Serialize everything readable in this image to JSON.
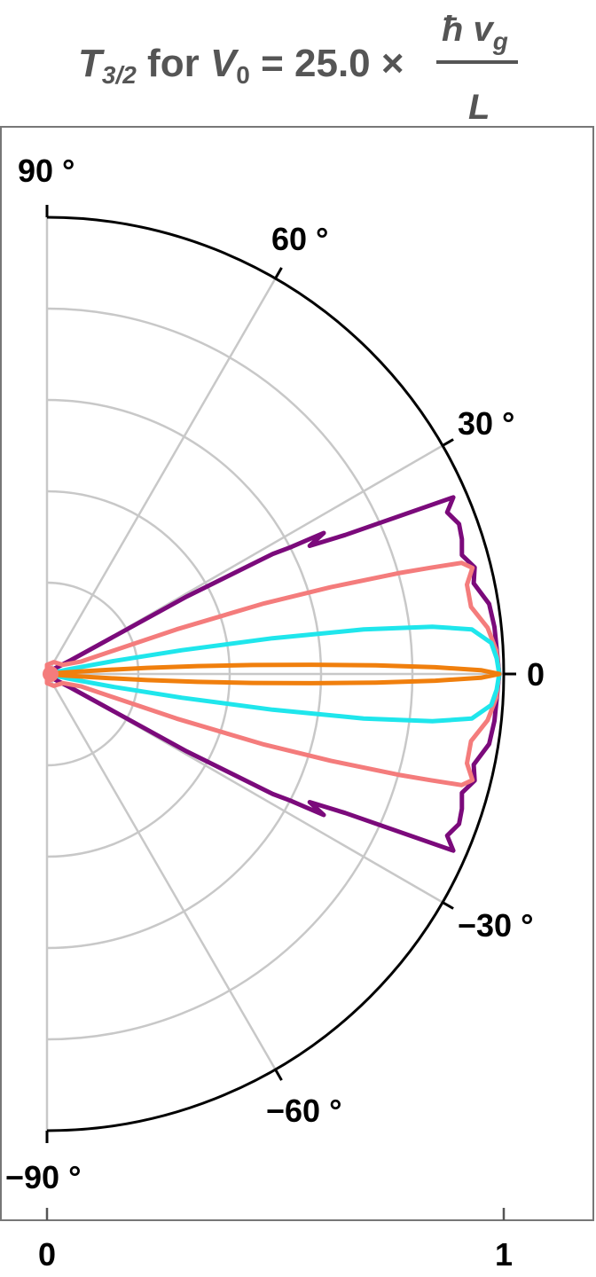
{
  "chart_data": {
    "type": "line",
    "coordinate_system": "polar",
    "title": {
      "T": "T",
      "T_sub": "3/2",
      "mid": " for ",
      "V": "V",
      "V_sub": "0",
      "eq": " = 25.0 ×",
      "num_h": "ħ",
      "num_v": " v",
      "num_sub": "g",
      "den": "L"
    },
    "angle_unit": "degrees",
    "angle_range": [
      -90,
      90
    ],
    "radius_range": [
      0,
      1
    ],
    "angle_ticks": [
      {
        "value": 90,
        "label": "90 °"
      },
      {
        "value": 60,
        "label": "60 °"
      },
      {
        "value": 30,
        "label": "30 °"
      },
      {
        "value": 0,
        "label": "0"
      },
      {
        "value": -30,
        "label": "−30 °"
      },
      {
        "value": -60,
        "label": "−60 °"
      },
      {
        "value": -90,
        "label": "−90 °"
      }
    ],
    "radial_ticks": [
      {
        "value": 0,
        "label": "0"
      },
      {
        "value": 1,
        "label": "1"
      }
    ],
    "radial_gridlines": [
      0.2,
      0.4,
      0.6,
      0.8
    ],
    "angular_gridlines": [
      -60,
      -30,
      30,
      60
    ],
    "grid": true,
    "legend": "none",
    "series": [
      {
        "color": "#7b0a7b",
        "points": [
          [
            0,
            0.99
          ],
          [
            6,
            0.985
          ],
          [
            9,
            0.98
          ],
          [
            12,
            0.955
          ],
          [
            14,
            0.965
          ],
          [
            16,
            0.945
          ],
          [
            18,
            0.955
          ],
          [
            20,
            0.96
          ],
          [
            22,
            0.945
          ],
          [
            23.5,
            0.97
          ],
          [
            25,
            0.72
          ],
          [
            26,
            0.64
          ],
          [
            27,
            0.68
          ],
          [
            27.5,
            0.6
          ],
          [
            28,
            0.56
          ],
          [
            29,
            0.35
          ],
          [
            30,
            0.06
          ],
          [
            33,
            0.03
          ],
          [
            45,
            0.01
          ]
        ]
      },
      {
        "color": "#f47c7c",
        "points": [
          [
            0,
            0.99
          ],
          [
            3,
            0.985
          ],
          [
            6,
            0.97
          ],
          [
            9,
            0.94
          ],
          [
            12,
            0.94
          ],
          [
            14,
            0.96
          ],
          [
            15,
            0.94
          ],
          [
            15.5,
            0.87
          ],
          [
            16,
            0.8
          ],
          [
            17,
            0.65
          ],
          [
            18,
            0.5
          ],
          [
            19,
            0.3
          ],
          [
            20,
            0.08
          ],
          [
            30,
            0.04
          ],
          [
            60,
            0.03
          ],
          [
            90,
            0.02
          ]
        ]
      },
      {
        "color": "#1fe6ec",
        "points": [
          [
            0,
            0.99
          ],
          [
            2,
            0.985
          ],
          [
            4,
            0.975
          ],
          [
            6,
            0.935
          ],
          [
            7,
            0.85
          ],
          [
            8,
            0.7
          ],
          [
            9,
            0.5
          ],
          [
            10,
            0.3
          ],
          [
            11,
            0.15
          ],
          [
            12,
            0.05
          ]
        ]
      },
      {
        "color": "#f07f0d",
        "points": [
          [
            0,
            0.99
          ],
          [
            0.5,
            0.95
          ],
          [
            1,
            0.85
          ],
          [
            1.5,
            0.72
          ],
          [
            2,
            0.58
          ],
          [
            2.5,
            0.45
          ],
          [
            3,
            0.33
          ],
          [
            3.5,
            0.22
          ],
          [
            4,
            0.12
          ],
          [
            5,
            0.04
          ]
        ]
      }
    ]
  }
}
